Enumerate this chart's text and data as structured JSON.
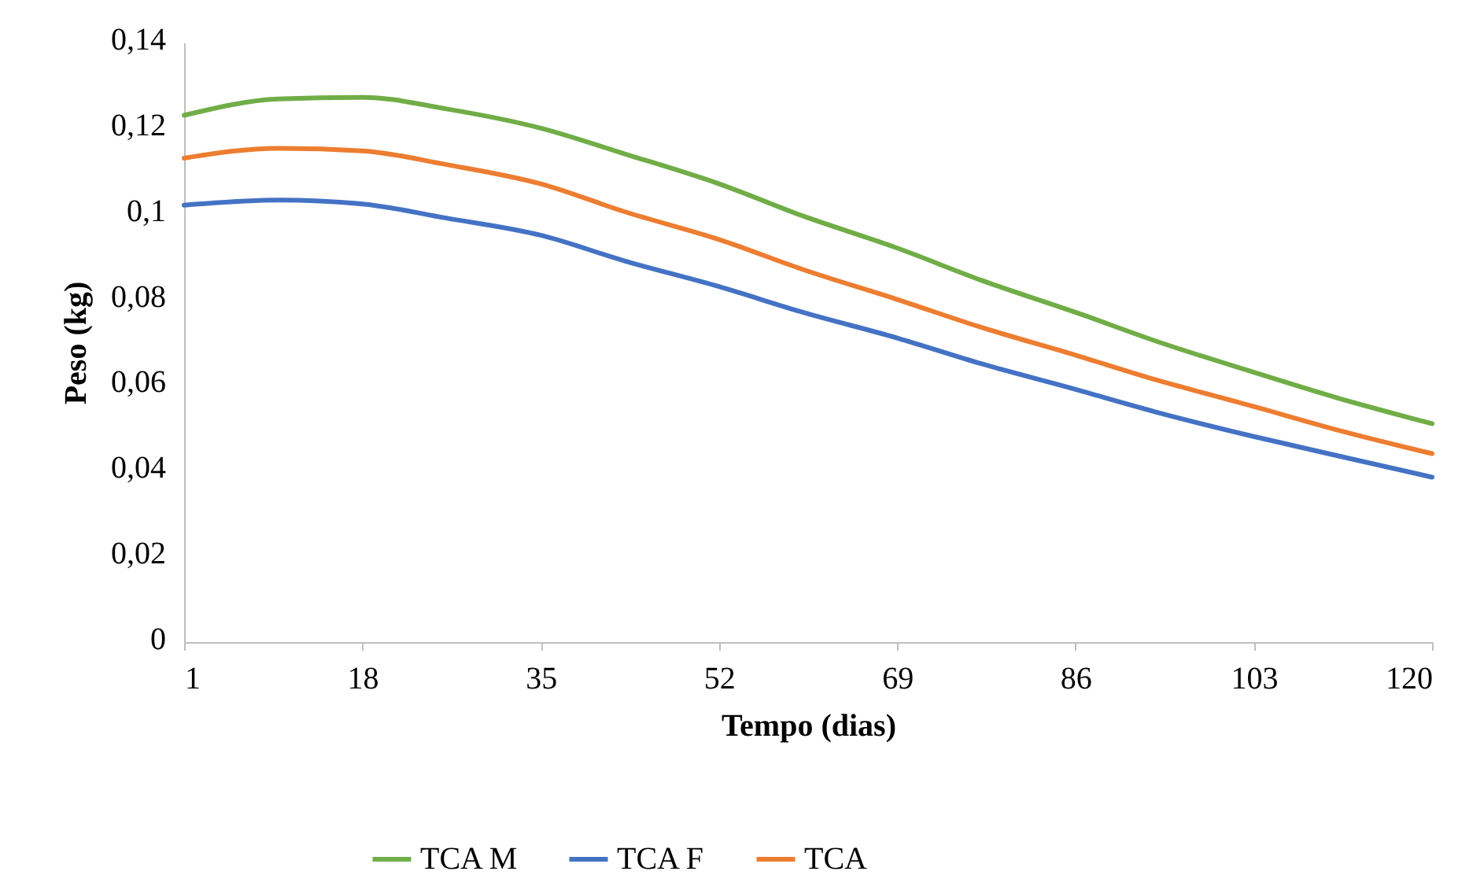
{
  "chart_data": {
    "type": "line",
    "xlabel": "Tempo (dias)",
    "ylabel": "Peso (kg)",
    "x": [
      1,
      10,
      18,
      26,
      35,
      43,
      52,
      60,
      69,
      77,
      86,
      94,
      103,
      111,
      120
    ],
    "xlim": [
      1,
      120
    ],
    "xticks": [
      1,
      18,
      35,
      52,
      69,
      86,
      103,
      120
    ],
    "ylim": [
      0,
      0.14
    ],
    "yticks": [
      0,
      {
        "value": 0.02,
        "label": "0,02"
      },
      {
        "value": 0.04,
        "label": "0,04"
      },
      {
        "value": 0.06,
        "label": "0,06"
      },
      {
        "value": 0.08,
        "label": "0,08"
      },
      {
        "value": 0.1,
        "label": "0,1"
      },
      {
        "value": 0.12,
        "label": "0,12"
      },
      {
        "value": 0.14,
        "label": "0,14"
      }
    ],
    "series": [
      {
        "name": "TCA  M",
        "color": "#70ad47",
        "values": [
          0.123,
          0.1268,
          0.1272,
          0.1245,
          0.12,
          0.114,
          0.107,
          0.0995,
          0.092,
          0.0845,
          0.077,
          0.07,
          0.063,
          0.057,
          0.051
        ]
      },
      {
        "name": "TCA  F",
        "color": "#4472c4",
        "values": [
          0.102,
          0.1032,
          0.1023,
          0.099,
          0.095,
          0.089,
          0.083,
          0.077,
          0.071,
          0.065,
          0.059,
          0.0535,
          0.048,
          0.0435,
          0.0385
        ]
      },
      {
        "name": "TCA",
        "color": "#ed7d31",
        "values": [
          0.113,
          0.1153,
          0.1147,
          0.1115,
          0.107,
          0.1005,
          0.094,
          0.087,
          0.08,
          0.0735,
          0.067,
          0.061,
          0.055,
          0.0495,
          0.044
        ]
      }
    ],
    "grid": false,
    "legend": "bottom",
    "marker": "none",
    "line_style": "solid"
  }
}
